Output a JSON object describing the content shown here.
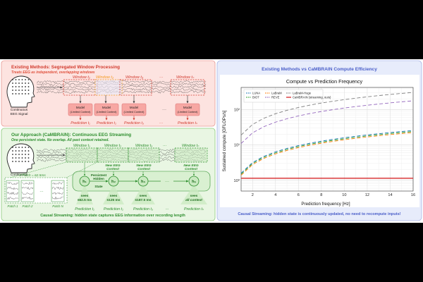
{
  "colors": {
    "red_panel": "#fde3e0",
    "red_border": "#e79b95",
    "red_text": "#d23b2e",
    "orange": "#f39a1f",
    "model_fill": "#f7a7a3",
    "green_panel": "#e9f6e3",
    "green_border": "#8ccb7c",
    "green_text": "#2f8f2f",
    "green_dark": "#1f6e1f",
    "blue_panel": "#e7ecfb",
    "blue_border": "#aab6e6",
    "blue_text": "#4b5fc9",
    "hidden_fill": "#c9e9c0"
  },
  "existing": {
    "title": "Existing Methods: Segregated Window Processing",
    "subtitle": "Treats EEG as independent, overlapping windows",
    "signal_label": [
      "Continuous",
      "EEG Signal"
    ],
    "windows": [
      "Window t₁",
      "Window t₂",
      "Window t₃",
      "···",
      "Window tₙ"
    ],
    "models": [
      [
        "Model",
        "(Limited Context)"
      ],
      [
        "Model",
        "(Limited Context)"
      ],
      [
        "Model",
        "(Limited Context)"
      ],
      [
        "Model",
        "(Limited Context)"
      ]
    ],
    "model_ellipsis": "···",
    "predictions": [
      "Prediction t₁",
      "Prediction t₂",
      "Prediction t₃",
      "Prediction tₙ"
    ],
    "prediction_ellipsis": "···"
  },
  "approach": {
    "title": "Our Approach (CaMBRAIN): Continuous EEG Streaming",
    "subtitle1": "One persistent state. No overlap. All past context retained.",
    "signal_label": [
      "Continuous",
      "EEG Signal"
    ],
    "windows": [
      "Window t₁",
      "Window t₂",
      "Window t₃",
      "···",
      "Window tₙ"
    ],
    "new_context": [
      "New EEG",
      "Context"
    ],
    "patch_note": "1 Patch = 62.5ms",
    "patches": [
      "Patch 1",
      "Patch 2",
      "···",
      "Patch N"
    ],
    "hidden_state": [
      "Persistent",
      "Hidden",
      "State"
    ],
    "nodes": [
      "h₁",
      "h₂",
      "h₃",
      "···",
      "hₙ"
    ],
    "sees": [
      [
        "sees",
        "≤62.5 ms"
      ],
      [
        "sees",
        "≤125 ms"
      ],
      [
        "sees",
        "≤187.5 ms"
      ],
      [
        "sees",
        "all context"
      ]
    ],
    "predictions": [
      "Prediction t₁",
      "Prediction t₂",
      "Prediction t₃",
      "Prediction tₙ"
    ],
    "prediction_ellipsis": "···",
    "footer": "Causal Streaming: hidden state captures EEG information over recording length"
  },
  "compute": {
    "panel_title": "Existing Methods vs CaMBRAIN Compute Efficiency",
    "footer": "Causal Streaming: hidden state is continuously updated, no need to recompute inputs!"
  },
  "chart_data": {
    "type": "line",
    "title": "Compute vs Prediction Frequency",
    "xlabel": "Prediction frequency [Hz]",
    "ylabel": "Sustained compute [GFLOPs/s]",
    "xlim": [
      1,
      16
    ],
    "ylim": [
      0.5,
      420
    ],
    "yscale": "log",
    "grid": true,
    "legend_position": "top-left",
    "xticks": [
      2,
      4,
      6,
      8,
      10,
      12,
      14,
      16
    ],
    "yticks": [
      {
        "value": 1,
        "label": "10⁰"
      },
      {
        "value": 10,
        "label": "10¹"
      },
      {
        "value": 100,
        "label": "10²"
      }
    ],
    "x": [
      1,
      2,
      3,
      4,
      5,
      6,
      7,
      8,
      9,
      10,
      11,
      12,
      13,
      14,
      15,
      16
    ],
    "series": [
      {
        "name": "LUNA",
        "color": "#1f77b4",
        "dash": "5,3",
        "values": [
          1.6,
          3.2,
          4.8,
          6.4,
          8.0,
          9.6,
          11.2,
          12.8,
          14.4,
          16.0,
          17.6,
          19.2,
          20.8,
          22.4,
          24.0,
          25.6
        ]
      },
      {
        "name": "BIOT",
        "color": "#2ca02c",
        "dash": "5,3",
        "values": [
          1.5,
          3.0,
          4.5,
          6.0,
          7.5,
          9.0,
          10.5,
          12.0,
          13.5,
          15.0,
          16.5,
          18.0,
          19.5,
          21.0,
          22.5,
          24.0
        ]
      },
      {
        "name": "LaBraM",
        "color": "#ff7f0e",
        "dash": "5,3",
        "values": [
          1.4,
          2.8,
          4.2,
          5.6,
          7.0,
          8.4,
          9.8,
          11.2,
          12.6,
          14.0,
          15.4,
          16.8,
          18.2,
          19.6,
          21.0,
          22.4
        ]
      },
      {
        "name": "REVE",
        "color": "#9467bd",
        "dash": "5,3",
        "values": [
          11,
          22,
          33,
          44,
          55,
          66,
          77,
          88,
          99,
          110,
          121,
          132,
          143,
          154,
          165,
          176
        ]
      },
      {
        "name": "LaBraM-Huge",
        "color": "#7f7f7f",
        "dash": "5,3",
        "values": [
          19,
          38,
          57,
          76,
          95,
          114,
          133,
          152,
          171,
          190,
          209,
          228,
          247,
          266,
          285,
          304
        ]
      },
      {
        "name": "CaMBRAIN (streaming, ours)",
        "color": "#d62728",
        "dash": "",
        "values": [
          1.15,
          1.15,
          1.15,
          1.15,
          1.15,
          1.15,
          1.15,
          1.15,
          1.15,
          1.15,
          1.15,
          1.15,
          1.15,
          1.15,
          1.15,
          1.15
        ]
      }
    ]
  }
}
